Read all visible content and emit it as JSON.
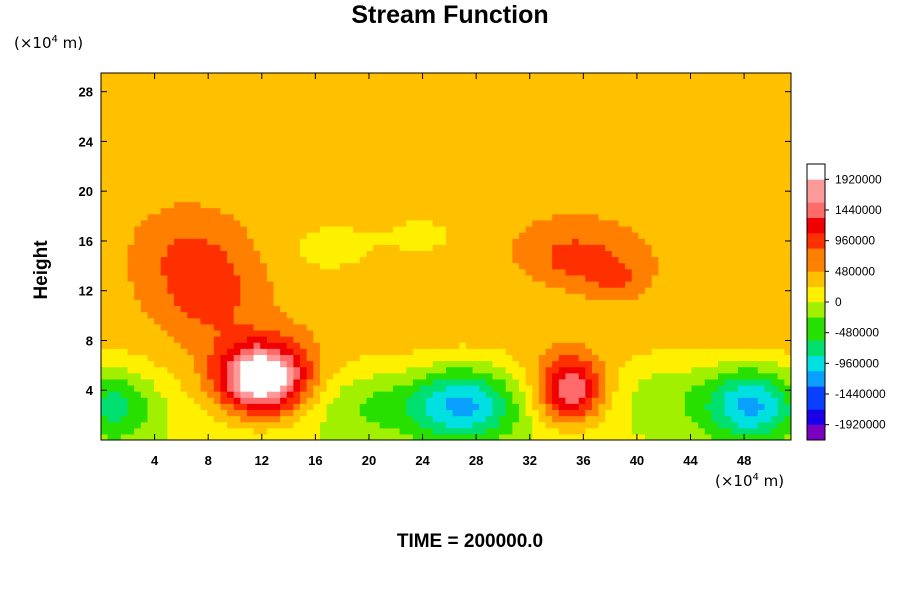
{
  "chart_data": {
    "type": "heatmap",
    "title": "Stream Function",
    "ylabel": "Height",
    "x_unit": "(×10",
    "x_unit_exp": "4",
    "x_unit_tail": " m)",
    "y_unit": "(×10",
    "y_unit_exp": "4",
    "y_unit_tail": " m)",
    "footer": "TIME = 200000.0",
    "xlim": [
      0,
      51.5
    ],
    "ylim": [
      0,
      29.5
    ],
    "x_ticks": [
      4,
      8,
      12,
      16,
      20,
      24,
      28,
      32,
      36,
      40,
      44,
      48
    ],
    "y_ticks": [
      4,
      8,
      12,
      16,
      20,
      24,
      28
    ],
    "colorbar": {
      "range": [
        -2160000,
        2160000
      ],
      "tick_values": [
        1920000,
        1440000,
        960000,
        480000,
        0,
        -480000,
        -960000,
        -1440000,
        -1920000
      ],
      "tick_labels": [
        "1920000",
        "1440000",
        "960000",
        "480000",
        "0",
        "-480000",
        "-960000",
        "-1440000",
        "-1920000"
      ],
      "colors": [
        "#7a00c0",
        "#1a00e8",
        "#0a40ff",
        "#0aa0ff",
        "#00e0e0",
        "#00e070",
        "#28e000",
        "#a0f000",
        "#fff000",
        "#ffc000",
        "#ff8000",
        "#ff3000",
        "#f00000",
        "#ff6b6b",
        "#ff9a9a",
        "#ffffff"
      ]
    },
    "background_value": 480000,
    "features": [
      {
        "x": 12,
        "y": 5,
        "sx": 3.2,
        "sy": 2.8,
        "value": 2200000
      },
      {
        "x": 8,
        "y": 12,
        "sx": 3.5,
        "sy": 4.0,
        "value": 500000
      },
      {
        "x": 6,
        "y": 15,
        "sx": 3.0,
        "sy": 3.0,
        "value": 250000
      },
      {
        "x": 35,
        "y": 4,
        "sx": 2.4,
        "sy": 2.6,
        "value": 1400000
      },
      {
        "x": 35.5,
        "y": 14.5,
        "sx": 4.0,
        "sy": 2.5,
        "value": 480000
      },
      {
        "x": 38.5,
        "y": 13,
        "sx": 1.8,
        "sy": 1.5,
        "value": 300000
      },
      {
        "x": 27,
        "y": 3,
        "sx": 4.0,
        "sy": 3.0,
        "value": -1300000
      },
      {
        "x": 48.5,
        "y": 3,
        "sx": 3.5,
        "sy": 3.0,
        "value": -1300000
      },
      {
        "x": 1,
        "y": 3,
        "sx": 3.0,
        "sy": 3.0,
        "value": -800000
      },
      {
        "x": 20,
        "y": 3,
        "sx": 4.0,
        "sy": 3.0,
        "value": -400000
      },
      {
        "x": 42,
        "y": 4,
        "sx": 3.5,
        "sy": 3.0,
        "value": -350000
      },
      {
        "x": 17,
        "y": 15.5,
        "sx": 3.5,
        "sy": 2.5,
        "value": -300000
      },
      {
        "x": 24,
        "y": 16.5,
        "sx": 4.0,
        "sy": 2.5,
        "value": -250000
      },
      {
        "x": 31,
        "y": 12,
        "sx": 6.0,
        "sy": 2.5,
        "value": -150000
      }
    ],
    "grid": false
  }
}
